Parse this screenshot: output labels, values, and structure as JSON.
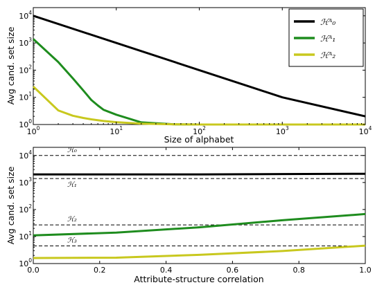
{
  "chart_data": [
    {
      "type": "line",
      "xlabel": "Size of alphabet",
      "ylabel": "Avg cand. set size",
      "x_scale": "log",
      "y_scale": "log",
      "xlim": [
        1,
        10000
      ],
      "ylim": [
        1,
        20000
      ],
      "x_ticks": [
        {
          "value": 1,
          "base": "10",
          "exp": "0"
        },
        {
          "value": 10,
          "base": "10",
          "exp": "1"
        },
        {
          "value": 100,
          "base": "10",
          "exp": "2"
        },
        {
          "value": 1000,
          "base": "10",
          "exp": "3"
        },
        {
          "value": 10000,
          "base": "10",
          "exp": "4"
        }
      ],
      "y_ticks": [
        {
          "value": 1,
          "base": "10",
          "exp": "0"
        },
        {
          "value": 10,
          "base": "10",
          "exp": "1"
        },
        {
          "value": 100,
          "base": "10",
          "exp": "2"
        },
        {
          "value": 1000,
          "base": "10",
          "exp": "3"
        },
        {
          "value": 10000,
          "base": "10",
          "exp": "4"
        }
      ],
      "legend_position": "top-right",
      "series": [
        {
          "name": "ℋᴬ₀",
          "color": "#000000",
          "x": [
            1,
            10,
            100,
            1000,
            10000
          ],
          "y": [
            10000,
            1000,
            100,
            10,
            2
          ]
        },
        {
          "name": "ℋᴬ₁",
          "color": "#1e8c1e",
          "x": [
            1,
            2,
            3,
            4,
            5,
            6,
            7,
            8,
            10,
            20,
            50,
            100,
            1000,
            10000
          ],
          "y": [
            1400,
            200,
            50,
            18,
            8,
            5,
            3.5,
            3,
            2.3,
            1.2,
            1.02,
            1,
            1,
            1
          ]
        },
        {
          "name": "ℋᴬ₂",
          "color": "#c8c81e",
          "x": [
            1,
            2,
            3,
            4,
            5,
            7,
            10,
            20,
            50,
            100,
            1000,
            10000
          ],
          "y": [
            25,
            3.3,
            2.1,
            1.75,
            1.55,
            1.35,
            1.22,
            1.08,
            1.02,
            1,
            1,
            1
          ]
        }
      ]
    },
    {
      "type": "line",
      "xlabel": "Attribute-structure correlation",
      "ylabel": "Avg cand. set size",
      "y_scale": "log",
      "xlim": [
        0,
        1
      ],
      "ylim": [
        1,
        20000
      ],
      "x_ticks": [
        "0.0",
        "0.2",
        "0.4",
        "0.6",
        "0.8",
        "1.0"
      ],
      "y_ticks": [
        {
          "value": 1,
          "base": "10",
          "exp": "0"
        },
        {
          "value": 10,
          "base": "10",
          "exp": "1"
        },
        {
          "value": 100,
          "base": "10",
          "exp": "2"
        },
        {
          "value": 1000,
          "base": "10",
          "exp": "3"
        },
        {
          "value": 10000,
          "base": "10",
          "exp": "4"
        }
      ],
      "reference_lines": [
        {
          "label": "ℋ₀",
          "y": 10000
        },
        {
          "label": "ℋ₁",
          "y": 1400
        },
        {
          "label": "ℋ₂",
          "y": 27
        },
        {
          "label": "ℋ₃",
          "y": 4.5
        }
      ],
      "series": [
        {
          "color": "#000000",
          "x": [
            0,
            0.25,
            0.5,
            0.75,
            1.0
          ],
          "y": [
            2000,
            2000,
            2000,
            2050,
            2100
          ]
        },
        {
          "color": "#1e8c1e",
          "x": [
            0,
            0.25,
            0.5,
            0.75,
            1.0
          ],
          "y": [
            11,
            14,
            22,
            40,
            68
          ]
        },
        {
          "color": "#c8c81e",
          "x": [
            0,
            0.25,
            0.5,
            0.75,
            1.0
          ],
          "y": [
            1.6,
            1.65,
            2.1,
            2.9,
            4.6
          ]
        }
      ]
    }
  ]
}
